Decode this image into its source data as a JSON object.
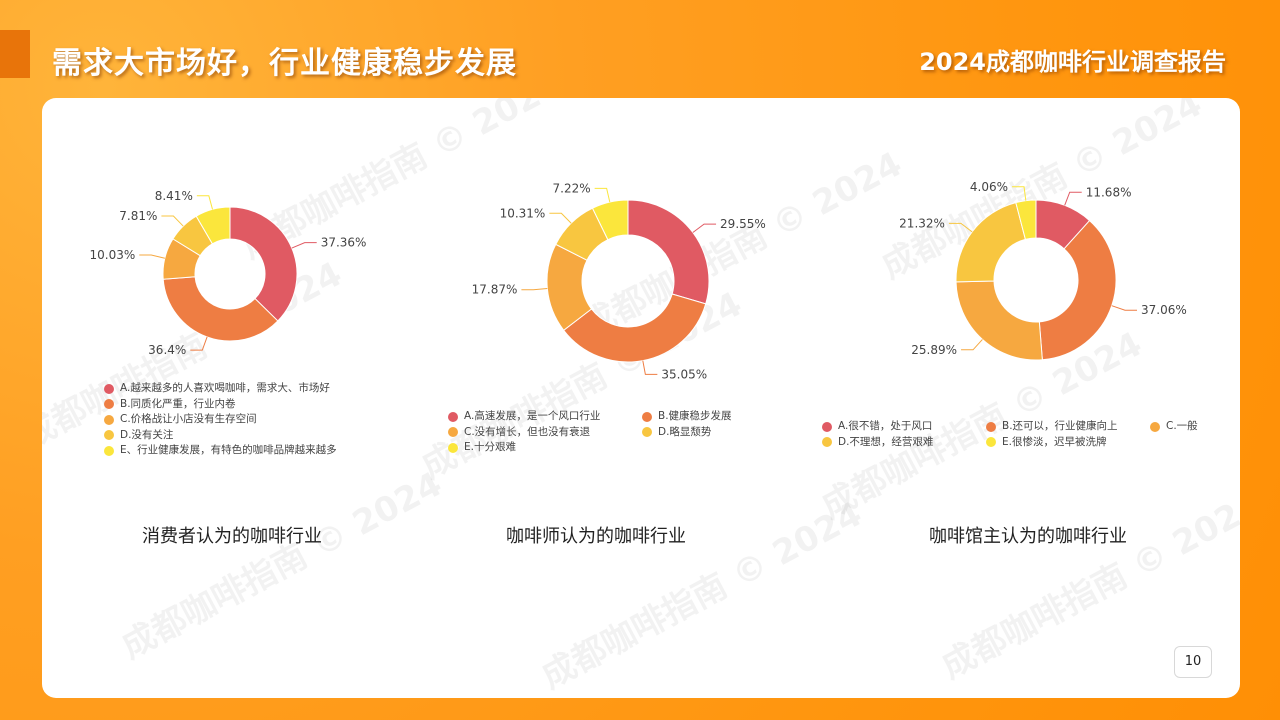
{
  "header": {
    "title": "需求大市场好，行业健康稳步发展",
    "report": "2024成都咖啡行业调查报告"
  },
  "page_number": "10",
  "watermark": "成都咖啡指南 © 2024",
  "chart_data": [
    {
      "type": "pie",
      "caption": "消费者认为的咖啡行业",
      "categories": [
        "A.越来越多的人喜欢喝咖啡，需求大、市场好",
        "B.同质化严重，行业内卷",
        "C.价格战让小店没有生存空间",
        "D.没有关注",
        "E、行业健康发展，有特色的咖啡品牌越来越多"
      ],
      "values": [
        37.36,
        36.4,
        10.03,
        7.81,
        8.41
      ],
      "labels": [
        "37.36%",
        "36.4%",
        "10.03%",
        "7.81%",
        "8.41%"
      ],
      "colors": [
        "#e05a63",
        "#ee7d43",
        "#f6a840",
        "#f8c640",
        "#fbe63c"
      ]
    },
    {
      "type": "pie",
      "caption": "咖啡师认为的咖啡行业",
      "categories": [
        "A.高速发展，是一个风口行业",
        "B.健康稳步发展",
        "C.没有增长，但也没有衰退",
        "D.略显颓势",
        "E.十分艰难"
      ],
      "values": [
        29.55,
        35.05,
        17.87,
        10.31,
        7.22
      ],
      "labels": [
        "29.55%",
        "35.05%",
        "17.87%",
        "10.31%",
        "7.22%"
      ],
      "colors": [
        "#e05a63",
        "#ee7d43",
        "#f6a840",
        "#f8c640",
        "#fbe63c"
      ]
    },
    {
      "type": "pie",
      "caption": "咖啡馆主认为的咖啡行业",
      "categories": [
        "A.很不错，处于风口",
        "B.还可以，行业健康向上",
        "C.一般",
        "D.不理想，经营艰难",
        "E.很惨淡，迟早被洗牌"
      ],
      "values": [
        11.68,
        37.06,
        25.89,
        21.32,
        4.06
      ],
      "labels": [
        "11.68%",
        "37.06%",
        "25.89%",
        "21.32%",
        "4.06%"
      ],
      "colors": [
        "#e05a63",
        "#ee7d43",
        "#f6a840",
        "#f8c640",
        "#fbe63c"
      ]
    }
  ]
}
